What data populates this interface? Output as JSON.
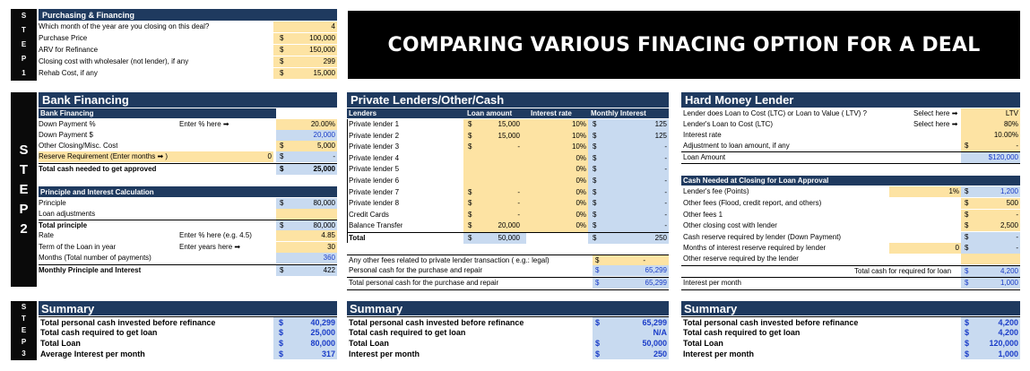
{
  "step_glyphs": {
    "step1": [
      "S",
      "T",
      "E",
      "P",
      "1"
    ],
    "step2": [
      "S",
      "T",
      "E",
      "P",
      "2"
    ],
    "step3": [
      "S",
      "T",
      "E",
      "P",
      "3"
    ]
  },
  "banner": {
    "title": "COMPARING VARIOUS FINACING OPTION FOR A DEAL"
  },
  "purchasing": {
    "header": "Purchasing & Financing",
    "rows": [
      {
        "label": "Which month of the year are you closing on this deal?",
        "dollar": "",
        "value": "4"
      },
      {
        "label": "Purchase Price",
        "dollar": "$",
        "value": "100,000"
      },
      {
        "label": "ARV for Refinance",
        "dollar": "$",
        "value": "150,000"
      },
      {
        "label": "Closing cost with wholesaler (not lender), if any",
        "dollar": "$",
        "value": "299"
      },
      {
        "label": "Rehab Cost, if any",
        "dollar": "$",
        "value": "15,000"
      }
    ]
  },
  "bank": {
    "title": "Bank Financing",
    "sub1": "Bank Financing",
    "down_pct_label": "Down Payment %",
    "down_pct_hint": "Enter % here ➡",
    "down_pct_value": "20.00%",
    "down_usd_label": "Down Payment $",
    "down_usd_value": "20,000",
    "other_closing_label": "Other Closing/Misc. Cost",
    "other_closing_dollar": "$",
    "other_closing_value": "5,000",
    "reserve_label": "Reserve Requirement (Enter months ➡ )",
    "reserve_months": "0",
    "reserve_dollar": "$",
    "reserve_value": "-",
    "total_cash_label": "Total cash needed to get approved",
    "total_cash_dollar": "$",
    "total_cash_value": "25,000",
    "sub2": "Principle and Interest Calculation",
    "principle_label": "Principle",
    "principle_dollar": "$",
    "principle_value": "80,000",
    "loan_adj_label": "Loan adjustments",
    "total_principle_label": "Total principle",
    "total_principle_dollar": "$",
    "total_principle_value": "80,000",
    "rate_label": "Rate",
    "rate_hint": "Enter % here (e.g. 4.5)",
    "rate_value": "4.85",
    "term_label": "Term of the Loan in year",
    "term_hint": "Enter years here ➡",
    "term_value": "30",
    "months_label": "Months (Total number of payments)",
    "months_value": "360",
    "monthly_label": "Monthly Principle and Interest",
    "monthly_dollar": "$",
    "monthly_value": "422"
  },
  "private": {
    "title": "Private Lenders/Other/Cash",
    "col_lenders": "Lenders",
    "col_amount": "Loan amount",
    "col_rate": "Interest rate",
    "col_monthly": "Monthly Interest",
    "rows": [
      {
        "name": "Private lender 1",
        "d1": "$",
        "amount": "15,000",
        "rate": "10%",
        "d2": "$",
        "monthly": "125"
      },
      {
        "name": "Private lender 2",
        "d1": "$",
        "amount": "15,000",
        "rate": "10%",
        "d2": "$",
        "monthly": "125"
      },
      {
        "name": "Private lender 3",
        "d1": "$",
        "amount": "-",
        "rate": "10%",
        "d2": "$",
        "monthly": "-"
      },
      {
        "name": "Private lender 4",
        "d1": "",
        "amount": "",
        "rate": "0%",
        "d2": "$",
        "monthly": "-"
      },
      {
        "name": "Private lender 5",
        "d1": "",
        "amount": "",
        "rate": "0%",
        "d2": "$",
        "monthly": "-"
      },
      {
        "name": "Private lender 6",
        "d1": "",
        "amount": "",
        "rate": "0%",
        "d2": "$",
        "monthly": "-"
      },
      {
        "name": "Private lender 7",
        "d1": "$",
        "amount": "-",
        "rate": "0%",
        "d2": "$",
        "monthly": "-"
      },
      {
        "name": "Private lender 8",
        "d1": "$",
        "amount": "-",
        "rate": "0%",
        "d2": "$",
        "monthly": "-"
      },
      {
        "name": "Credit Cards",
        "d1": "$",
        "amount": "-",
        "rate": "0%",
        "d2": "$",
        "monthly": "-"
      },
      {
        "name": "Balance Transfer",
        "d1": "$",
        "amount": "20,000",
        "rate": "0%",
        "d2": "$",
        "monthly": "-"
      }
    ],
    "total_label": "Total",
    "total_d1": "$",
    "total_amount": "50,000",
    "total_d2": "$",
    "total_monthly": "250",
    "other_fees_label": "Any other fees related to private lender transaction ( e.g.: legal)",
    "other_fees_dollar": "$",
    "other_fees_value": "-",
    "personal_cash_label": "Personal cash for the purchase and repair",
    "personal_cash_dollar": "$",
    "personal_cash_value": "65,299",
    "total_personal_label": "Total personal cash for the purchase and repair",
    "total_personal_dollar": "$",
    "total_personal_value": "65,299"
  },
  "hardmoney": {
    "title": "Hard Money Lender",
    "ltc_label": "Lender does Loan to Cost (LTC) or Loan to Value ( LTV) ?",
    "ltc_hint": "Select here ➡",
    "ltc_value": "LTV",
    "lender_ltc_label": "Lender's Loan to Cost (LTC)",
    "lender_ltc_hint": "Select here ➡",
    "lender_ltc_value": "80%",
    "interest_label": "Interest rate",
    "interest_value": "10.00%",
    "adjust_label": "Adjustment to loan amount, if any",
    "adjust_dollar": "$",
    "adjust_value": "-",
    "loan_amount_label": "Loan Amount",
    "loan_amount_value": "$120,000",
    "sub": "Cash Needed at Closing for Loan Approval",
    "fee_label": "Lender's fee (Points)",
    "fee_pct": "1%",
    "fee_dollar": "$",
    "fee_value": "1,200",
    "other_fees_label": "Other fees (Flood, credit report, and others)",
    "other_fees_dollar": "$",
    "other_fees_value": "500",
    "other_fees1_label": "Other fees 1",
    "other_fees1_dollar": "$",
    "other_fees1_value": "-",
    "other_closing_label": "Other closing cost with lender",
    "other_closing_dollar": "$",
    "other_closing_value": "2,500",
    "cash_reserve_label": "Cash reserve required by lender (Down Payment)",
    "cash_reserve_dollar": "$",
    "cash_reserve_value": "-",
    "months_reserve_label": "Months of interest reserve required by lender",
    "months_reserve_months": "0",
    "months_reserve_dollar": "$",
    "months_reserve_value": "-",
    "other_reserve_label": "Other reserve required by the lender",
    "total_cash_label": "Total cash for required for loan",
    "total_cash_dollar": "$",
    "total_cash_value": "4,200",
    "interest_month_label": "Interest per month",
    "interest_month_dollar": "$",
    "interest_month_value": "1,000"
  },
  "summary1": {
    "title": "Summary",
    "rows": [
      {
        "label": "Total personal cash invested before refinance",
        "dollar": "$",
        "value": "40,299"
      },
      {
        "label": "Total cash required to get loan",
        "dollar": "$",
        "value": "25,000"
      },
      {
        "label": "Total Loan",
        "dollar": "$",
        "value": "80,000"
      },
      {
        "label": "Average Interest per month",
        "dollar": "$",
        "value": "317"
      }
    ]
  },
  "summary2": {
    "title": "Summary",
    "rows": [
      {
        "label": "Total personal cash invested before refinance",
        "dollar": "$",
        "value": "65,299"
      },
      {
        "label": "Total cash required to get loan",
        "dollar": "",
        "value": "N/A"
      },
      {
        "label": "Total Loan",
        "dollar": "$",
        "value": "50,000"
      },
      {
        "label": "Interest per month",
        "dollar": "$",
        "value": "250"
      }
    ]
  },
  "summary3": {
    "title": "Summary",
    "rows": [
      {
        "label": "Total personal cash invested before refinance",
        "dollar": "$",
        "value": "4,200"
      },
      {
        "label": "Total cash required to get loan",
        "dollar": "$",
        "value": "4,200"
      },
      {
        "label": "Total Loan",
        "dollar": "$",
        "value": "120,000"
      },
      {
        "label": "Interest per month",
        "dollar": "$",
        "value": "1,000"
      }
    ]
  }
}
